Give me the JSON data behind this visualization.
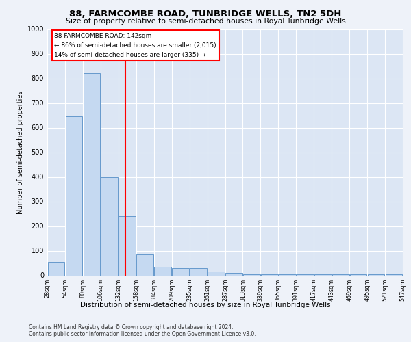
{
  "title": "88, FARMCOMBE ROAD, TUNBRIDGE WELLS, TN2 5DH",
  "subtitle": "Size of property relative to semi-detached houses in Royal Tunbridge Wells",
  "xlabel_bottom": "Distribution of semi-detached houses by size in Royal Tunbridge Wells",
  "ylabel": "Number of semi-detached properties",
  "bin_labels": [
    "28sqm",
    "54sqm",
    "80sqm",
    "106sqm",
    "132sqm",
    "158sqm",
    "184sqm",
    "209sqm",
    "235sqm",
    "261sqm",
    "287sqm",
    "313sqm",
    "339sqm",
    "365sqm",
    "391sqm",
    "417sqm",
    "443sqm",
    "469sqm",
    "495sqm",
    "521sqm",
    "547sqm"
  ],
  "values": [
    55,
    645,
    820,
    400,
    240,
    85,
    35,
    30,
    30,
    15,
    10,
    5,
    5,
    5,
    5,
    5,
    5,
    5,
    5,
    5
  ],
  "bar_color": "#c5d9f1",
  "bar_edge_color": "#6699cc",
  "red_line_label": "88 FARMCOMBE ROAD: 142sqm",
  "annotation_line1": "← 86% of semi-detached houses are smaller (2,015)",
  "annotation_line2": "14% of semi-detached houses are larger (335) →",
  "ylim": [
    0,
    1000
  ],
  "yticks": [
    0,
    100,
    200,
    300,
    400,
    500,
    600,
    700,
    800,
    900,
    1000
  ],
  "footer1": "Contains HM Land Registry data © Crown copyright and database right 2024.",
  "footer2": "Contains public sector information licensed under the Open Government Licence v3.0.",
  "plot_bg_color": "#dce6f4",
  "fig_bg_color": "#eef2f9"
}
